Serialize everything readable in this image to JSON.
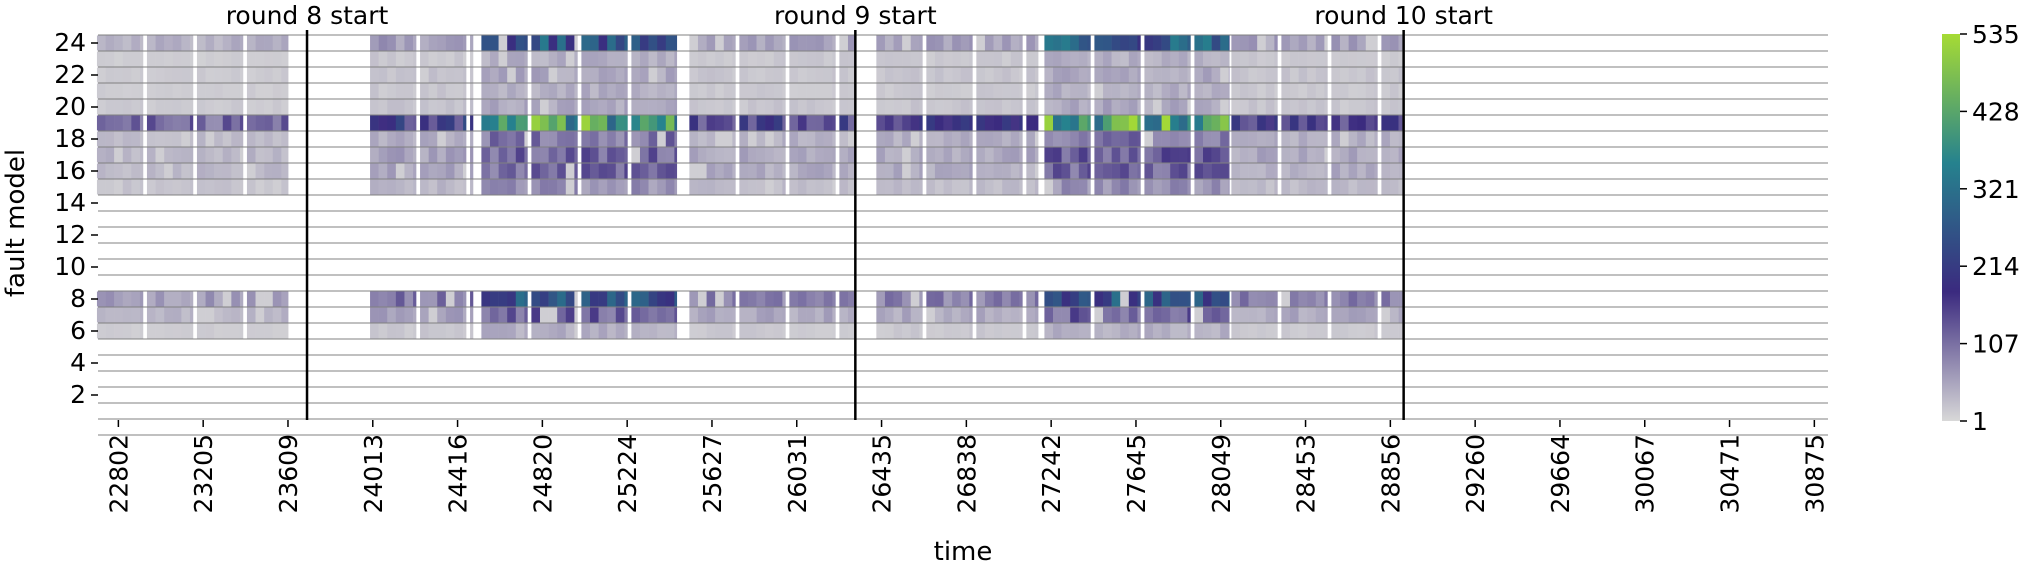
{
  "chart_data": {
    "type": "heatmap",
    "xlabel": "time",
    "ylabel": "fault model",
    "x_ticks": [
      "22802",
      "23205",
      "23609",
      "24013",
      "24416",
      "24820",
      "25224",
      "25627",
      "26031",
      "26435",
      "26838",
      "27242",
      "27645",
      "28049",
      "28453",
      "28856",
      "29260",
      "29664",
      "30067",
      "30471",
      "30875"
    ],
    "y_ticks": [
      "2",
      "4",
      "6",
      "8",
      "10",
      "12",
      "14",
      "16",
      "18",
      "20",
      "22",
      "24"
    ],
    "xlim": [
      22705,
      30940
    ],
    "ylim": [
      1,
      24
    ],
    "grid": true,
    "colorbar": {
      "min": 1,
      "max": 535,
      "ticks": [
        "1",
        "107",
        "214",
        "321",
        "428",
        "535"
      ],
      "colors": [
        "#d8d8d8",
        "#3b2a7f",
        "#26828e",
        "#a6db34"
      ]
    },
    "annotations": [
      {
        "label": "round 8 start",
        "x": 23700
      },
      {
        "label": "round 9 start",
        "x": 26310
      },
      {
        "label": "round 10 start",
        "x": 28920
      }
    ],
    "activity_blocks": [
      {
        "start": 22700,
        "end": 23610,
        "level": 0.25
      },
      {
        "start": 24000,
        "end": 24490,
        "level": 0.4
      },
      {
        "start": 24530,
        "end": 25460,
        "level": 0.9
      },
      {
        "start": 25520,
        "end": 26310,
        "level": 0.35
      },
      {
        "start": 26410,
        "end": 27180,
        "level": 0.35
      },
      {
        "start": 27210,
        "end": 28090,
        "level": 0.9
      },
      {
        "start": 28100,
        "end": 28920,
        "level": 0.35
      }
    ],
    "row_profile": {
      "24": 0.35,
      "23": 0.1,
      "22": 0.12,
      "21": 0.1,
      "20": 0.12,
      "19": 1.0,
      "18": 0.25,
      "17": 0.3,
      "16": 0.28,
      "15": 0.18,
      "8": 0.55,
      "7": 0.3,
      "6": 0.1
    }
  }
}
